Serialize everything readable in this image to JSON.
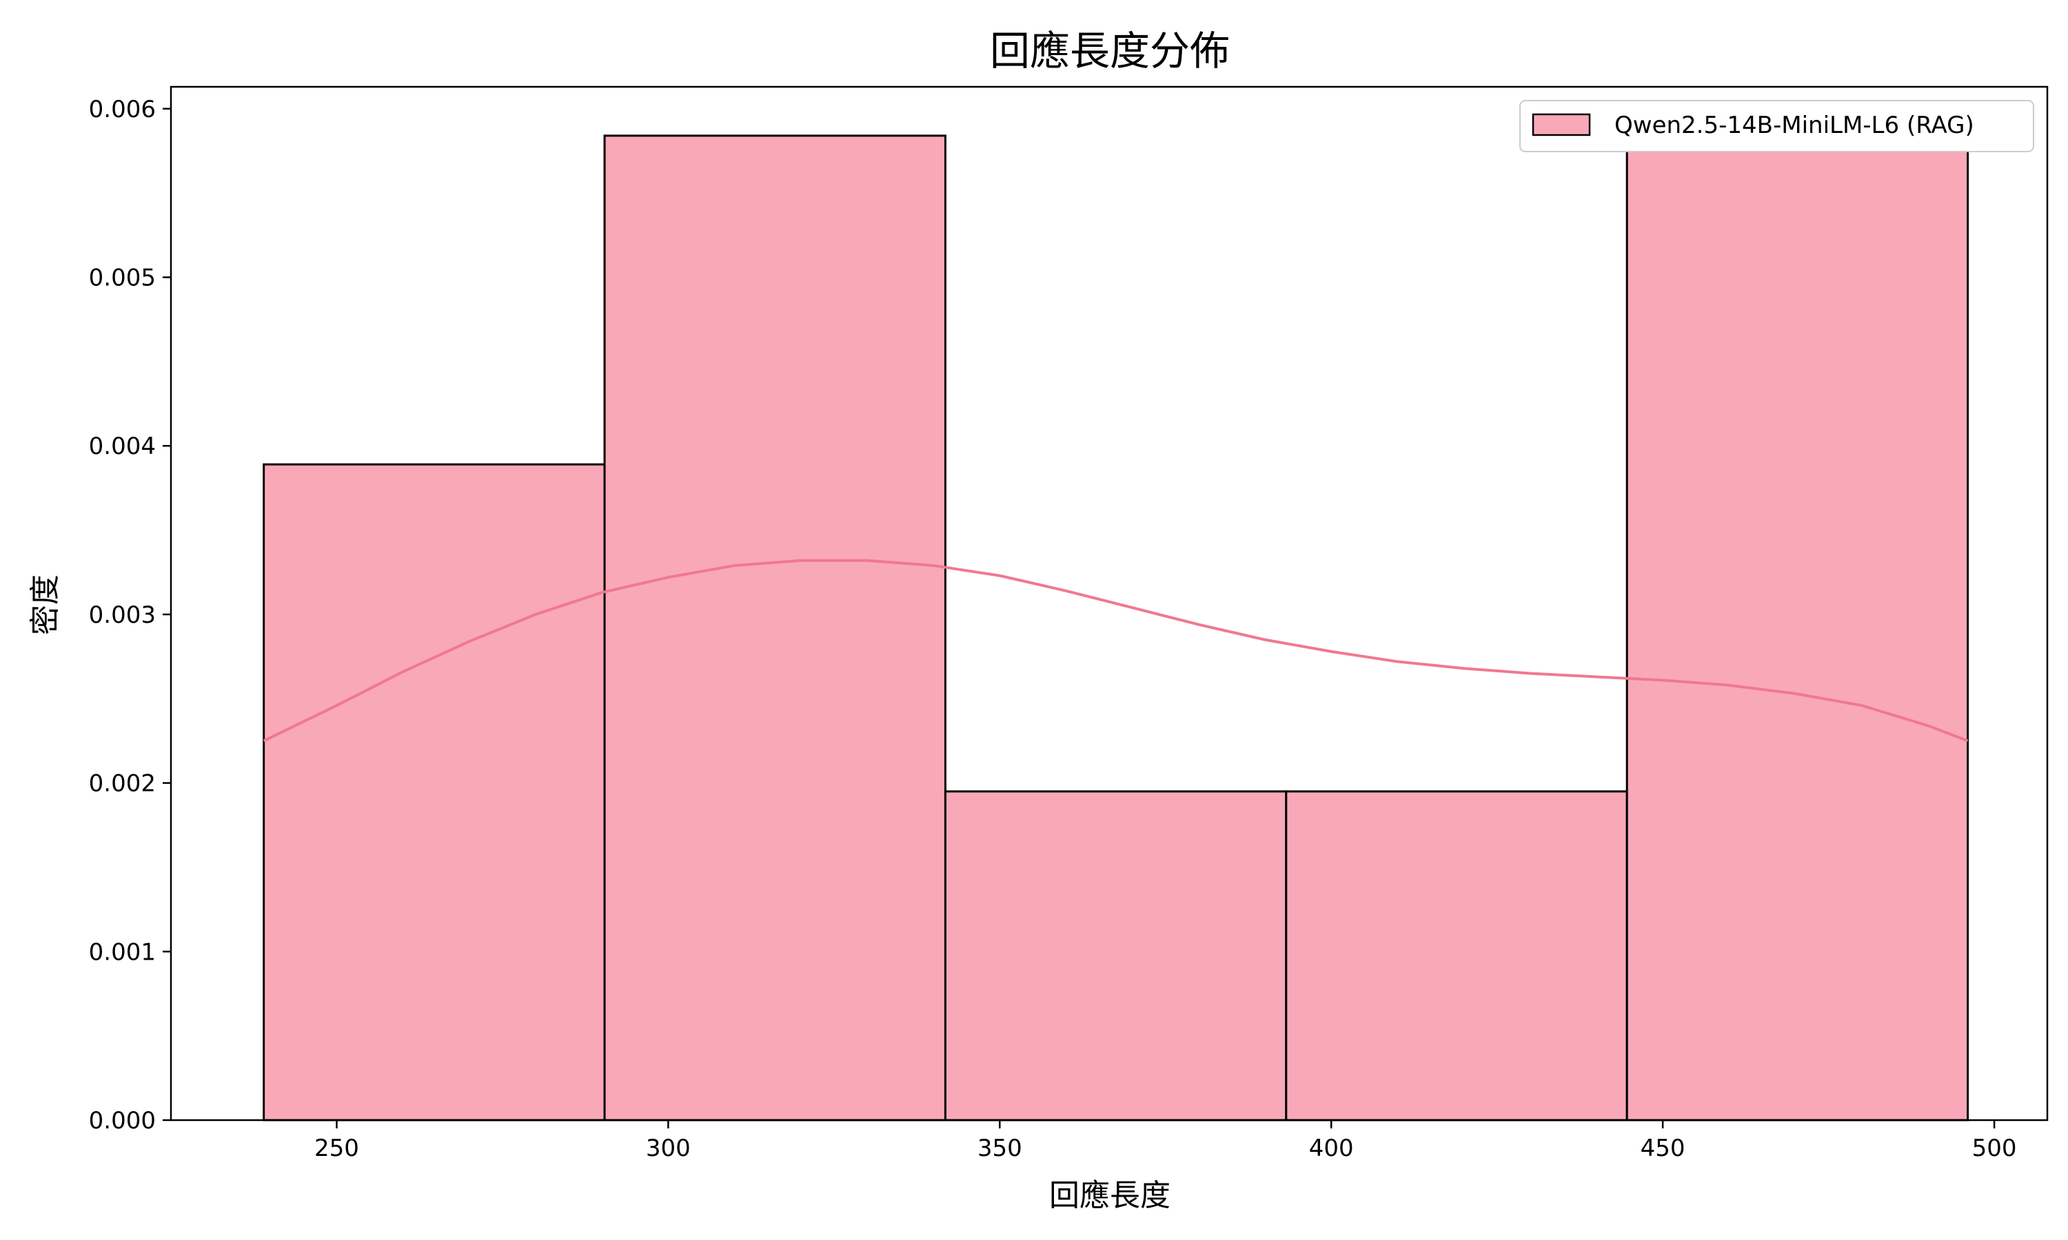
{
  "chart_data": {
    "type": "bar",
    "title": "回應長度分佈",
    "xlabel": "回應長度",
    "ylabel": "密度",
    "xlim": [
      225,
      508
    ],
    "ylim": [
      0,
      0.00613
    ],
    "x_ticks": [
      250,
      300,
      350,
      400,
      450,
      500
    ],
    "x_tick_labels": [
      "250",
      "300",
      "350",
      "400",
      "450",
      "500"
    ],
    "y_ticks": [
      0,
      0.001,
      0.002,
      0.003,
      0.004,
      0.005,
      0.006
    ],
    "y_tick_labels": [
      "0.000",
      "0.001",
      "0.002",
      "0.003",
      "0.004",
      "0.005",
      "0.006"
    ],
    "grid": false,
    "legend_position": "top-right",
    "colors": {
      "bar_fill": "#f9a8b8",
      "bar_edge": "#000000",
      "kde_line": "#f07890"
    },
    "series": [
      {
        "name": "Qwen2.5-14B-MiniLM-L6 (RAG)",
        "bins": [
          {
            "start": 239,
            "end": 290.4,
            "value": 0.00389
          },
          {
            "start": 290.4,
            "end": 341.8,
            "value": 0.00584
          },
          {
            "start": 341.8,
            "end": 393.2,
            "value": 0.00195
          },
          {
            "start": 393.2,
            "end": 444.6,
            "value": 0.00195
          },
          {
            "start": 444.6,
            "end": 496,
            "value": 0.00584
          }
        ],
        "kde": {
          "x": [
            239,
            250,
            260,
            270,
            280,
            290,
            300,
            310,
            320,
            330,
            340,
            350,
            360,
            370,
            380,
            390,
            400,
            410,
            420,
            430,
            440,
            450,
            460,
            470,
            480,
            490,
            496
          ],
          "y": [
            0.00225,
            0.00246,
            0.00266,
            0.00284,
            0.003,
            0.00313,
            0.00322,
            0.00329,
            0.00332,
            0.00332,
            0.00329,
            0.00323,
            0.00314,
            0.00304,
            0.00294,
            0.00285,
            0.00278,
            0.00272,
            0.00268,
            0.00265,
            0.00263,
            0.00261,
            0.00258,
            0.00253,
            0.00246,
            0.00234,
            0.00225
          ]
        }
      }
    ]
  }
}
